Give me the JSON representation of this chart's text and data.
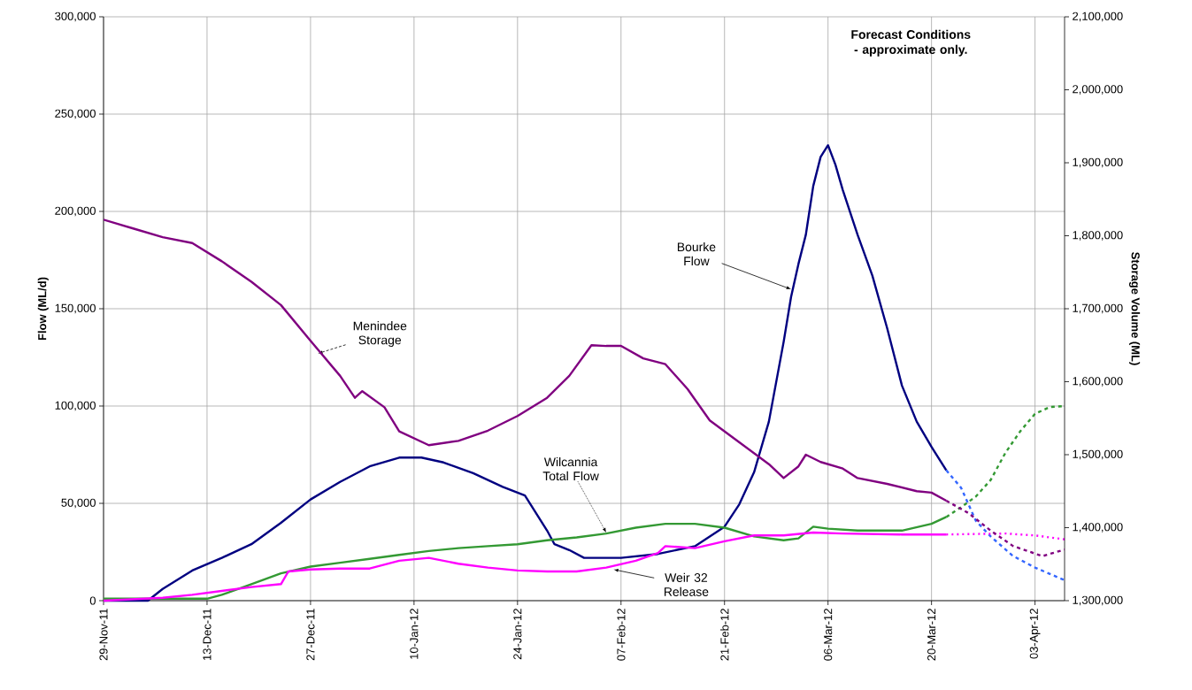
{
  "chart_data": {
    "type": "line",
    "ylabel": "Flow (ML/d)",
    "y2label": "Storage Volume (ML)",
    "xlim": [
      "2011-11-29",
      "2012-04-07"
    ],
    "xticks": [
      {
        "value": "2011-11-29",
        "label": "29-Nov-11"
      },
      {
        "value": "2011-12-13",
        "label": "13-Dec-11"
      },
      {
        "value": "2011-12-27",
        "label": "27-Dec-11"
      },
      {
        "value": "2012-01-10",
        "label": "10-Jan-12"
      },
      {
        "value": "2012-01-24",
        "label": "24-Jan-12"
      },
      {
        "value": "2012-02-07",
        "label": "07-Feb-12"
      },
      {
        "value": "2012-02-21",
        "label": "21-Feb-12"
      },
      {
        "value": "2012-03-06",
        "label": "06-Mar-12"
      },
      {
        "value": "2012-03-20",
        "label": "20-Mar-12"
      },
      {
        "value": "2012-04-03",
        "label": "03-Apr-12"
      }
    ],
    "ylim": [
      0,
      300000
    ],
    "yticks": [
      0,
      {
        "value": 50000,
        "label": "50,000"
      },
      {
        "value": 100000,
        "label": "100,000"
      },
      {
        "value": 150000,
        "label": "150,000"
      },
      {
        "value": 200000,
        "label": "200,000"
      },
      {
        "value": 250000,
        "label": "250,000"
      },
      {
        "value": 300000,
        "label": "300,000"
      }
    ],
    "y2lim": [
      1300000,
      2100000
    ],
    "y2ticks": [
      {
        "value": 1300000,
        "label": "1,300,000"
      },
      {
        "value": 1400000,
        "label": "1,400,000"
      },
      {
        "value": 1500000,
        "label": "1,500,000"
      },
      {
        "value": 1600000,
        "label": "1,600,000"
      },
      {
        "value": 1700000,
        "label": "1,700,000"
      },
      {
        "value": 1800000,
        "label": "1,800,000"
      },
      {
        "value": 1900000,
        "label": "1,900,000"
      },
      {
        "value": 2000000,
        "label": "2,000,000"
      },
      {
        "value": 2100000,
        "label": "2,100,000"
      }
    ],
    "grid": true,
    "series": [
      {
        "color": "#800080",
        "axis": "y2",
        "x": [
          "2011-11-29",
          "2011-12-03",
          "2011-12-07",
          "2011-12-11",
          "2011-12-15",
          "2011-12-19",
          "2011-12-23",
          "2011-12-27",
          "2011-12-31",
          "2012-01-02",
          "2012-01-03",
          "2012-01-06",
          "2012-01-08",
          "2012-01-12",
          "2012-01-16",
          "2012-01-20",
          "2012-01-24",
          "2012-01-28",
          "2012-01-31",
          "2012-02-03",
          "2012-02-05",
          "2012-02-07",
          "2012-02-10",
          "2012-02-13",
          "2012-02-16",
          "2012-02-19",
          "2012-02-23",
          "2012-02-27",
          "2012-02-29",
          "2012-03-02",
          "2012-03-03",
          "2012-03-05",
          "2012-03-08",
          "2012-03-10",
          "2012-03-14",
          "2012-03-18",
          "2012-03-20",
          "2012-03-22"
        ],
        "values": [
          1822000,
          1810000,
          1798000,
          1790000,
          1765000,
          1737000,
          1705000,
          1656000,
          1608000,
          1578000,
          1587000,
          1565000,
          1532000,
          1513000,
          1519000,
          1533000,
          1553000,
          1578000,
          1608000,
          1650000,
          1649000,
          1649000,
          1632000,
          1624000,
          1590000,
          1547000,
          1517000,
          1487000,
          1468000,
          1484000,
          1500000,
          1490000,
          1481000,
          1468000,
          1460000,
          1450000,
          1448000,
          1437000
        ]
      },
      {
        "color": "#800080",
        "axis": "y2",
        "line_style": "dashed",
        "x": [
          "2012-03-22",
          "2012-03-25",
          "2012-03-28",
          "2012-03-31",
          "2012-04-04",
          "2012-04-07"
        ],
        "values": [
          1437000,
          1420000,
          1396000,
          1375000,
          1361000,
          1370000
        ]
      },
      {
        "color": "#000080",
        "x": [
          "2011-11-29",
          "2011-12-05",
          "2011-12-07",
          "2011-12-11",
          "2011-12-15",
          "2011-12-19",
          "2011-12-23",
          "2011-12-27",
          "2011-12-31",
          "2012-01-04",
          "2012-01-08",
          "2012-01-11",
          "2012-01-14",
          "2012-01-18",
          "2012-01-22",
          "2012-01-25",
          "2012-01-28",
          "2012-01-29",
          "2012-01-31",
          "2012-02-02",
          "2012-02-07",
          "2012-02-12",
          "2012-02-17",
          "2012-02-21",
          "2012-02-23",
          "2012-02-25",
          "2012-02-27",
          "2012-02-29",
          "2012-03-01",
          "2012-03-02",
          "2012-03-03",
          "2012-03-04",
          "2012-03-05",
          "2012-03-06",
          "2012-03-07",
          "2012-03-08",
          "2012-03-10",
          "2012-03-12",
          "2012-03-14",
          "2012-03-16",
          "2012-03-18",
          "2012-03-20",
          "2012-03-22"
        ],
        "values": [
          0,
          0,
          6000,
          15500,
          22000,
          29000,
          40000,
          52000,
          61000,
          69000,
          73500,
          73500,
          71000,
          65500,
          58500,
          54000,
          36000,
          29000,
          26000,
          22000,
          22000,
          24000,
          28000,
          38000,
          49500,
          66000,
          92000,
          133000,
          156000,
          173000,
          188000,
          213000,
          228000,
          234000,
          224000,
          211000,
          188000,
          167000,
          140000,
          110500,
          92000,
          79000,
          67000
        ]
      },
      {
        "color": "#3366ff",
        "line_style": "dashed",
        "x": [
          "2012-03-22",
          "2012-03-24",
          "2012-03-26",
          "2012-03-28",
          "2012-03-31",
          "2012-04-03",
          "2012-04-07"
        ],
        "values": [
          67000,
          58000,
          41000,
          33000,
          23000,
          17000,
          10500
        ]
      },
      {
        "color": "#339933",
        "x": [
          "2011-11-29",
          "2011-12-13",
          "2011-12-15",
          "2011-12-19",
          "2011-12-23",
          "2011-12-27",
          "2011-12-31",
          "2012-01-04",
          "2012-01-08",
          "2012-01-12",
          "2012-01-16",
          "2012-01-20",
          "2012-01-24",
          "2012-01-28",
          "2012-02-01",
          "2012-02-05",
          "2012-02-09",
          "2012-02-13",
          "2012-02-17",
          "2012-02-21",
          "2012-02-25",
          "2012-02-29",
          "2012-03-02",
          "2012-03-04",
          "2012-03-06",
          "2012-03-10",
          "2012-03-16",
          "2012-03-20",
          "2012-03-22"
        ],
        "values": [
          1000,
          1000,
          3000,
          8500,
          14000,
          17500,
          19500,
          21500,
          23500,
          25500,
          27000,
          28000,
          29000,
          31000,
          32500,
          34500,
          37500,
          39500,
          39500,
          37500,
          33000,
          31000,
          32000,
          38000,
          37000,
          36000,
          36000,
          39500,
          43000
        ]
      },
      {
        "color": "#339933",
        "line_style": "dashed",
        "x": [
          "2012-03-22",
          "2012-03-24",
          "2012-03-26",
          "2012-03-28",
          "2012-03-30",
          "2012-04-01",
          "2012-04-03",
          "2012-04-05",
          "2012-04-07"
        ],
        "values": [
          43000,
          48000,
          53500,
          62000,
          76000,
          87000,
          96000,
          99500,
          100000
        ]
      },
      {
        "color": "#ff00ff",
        "x": [
          "2011-11-29",
          "2011-12-07",
          "2011-12-11",
          "2011-12-15",
          "2011-12-19",
          "2011-12-23",
          "2011-12-24",
          "2011-12-27",
          "2011-12-31",
          "2012-01-04",
          "2012-01-08",
          "2012-01-12",
          "2012-01-16",
          "2012-01-20",
          "2012-01-24",
          "2012-01-28",
          "2012-02-01",
          "2012-02-05",
          "2012-02-09",
          "2012-02-12",
          "2012-02-13",
          "2012-02-17",
          "2012-02-21",
          "2012-02-25",
          "2012-02-29",
          "2012-03-04",
          "2012-03-08",
          "2012-03-16",
          "2012-03-22"
        ],
        "values": [
          0,
          1500,
          3000,
          5000,
          7000,
          8500,
          15000,
          16000,
          16500,
          16500,
          20500,
          22000,
          19000,
          17000,
          15500,
          15000,
          15000,
          17000,
          20500,
          24500,
          28000,
          27000,
          30500,
          33500,
          33500,
          35000,
          34500,
          34000,
          34000
        ]
      },
      {
        "color": "#ff00ff",
        "line_style": "dotted",
        "x": [
          "2012-03-22",
          "2012-03-30",
          "2012-04-03",
          "2012-04-07"
        ],
        "values": [
          34000,
          34500,
          33500,
          31500
        ]
      }
    ],
    "annotations": [
      {
        "text": "Bourke Flow",
        "x": "2012-03-01",
        "y": 160000
      },
      {
        "text": "Menindee Storage",
        "x": "2011-12-28",
        "y": 127000
      },
      {
        "text": "Wilcannia Total Flow",
        "x": "2012-02-05",
        "y": 35000
      },
      {
        "text": "Weir 32 Release",
        "x": "2012-02-06",
        "y": 16000
      },
      "**Forecast Conditions - approximate only.**"
    ]
  }
}
